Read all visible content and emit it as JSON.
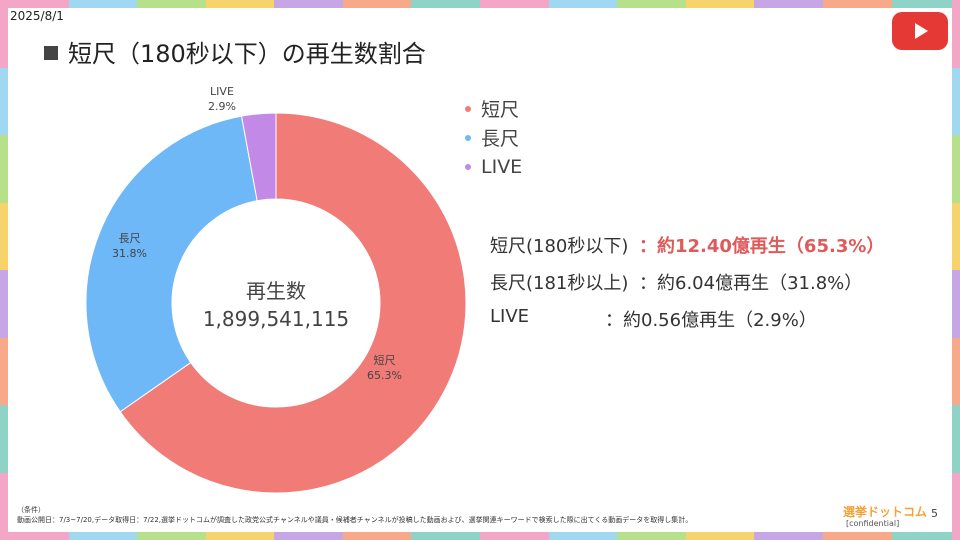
{
  "date": "2025/8/1",
  "title": "短尺（180秒以下）の再生数割合",
  "chart_data": {
    "type": "pie",
    "variant": "donut",
    "center_title": "再生数",
    "center_value": "1,899,541,115",
    "slices": [
      {
        "name": "短尺",
        "value": 65.3,
        "label": "65.3%",
        "color": "#f07b77"
      },
      {
        "name": "長尺",
        "value": 31.8,
        "label": "31.8%",
        "color": "#6fb8f7"
      },
      {
        "name": "LIVE",
        "value": 2.9,
        "label": "2.9%",
        "color": "#c28ae6"
      }
    ],
    "legend": [
      {
        "name": "短尺",
        "color": "#f07b77"
      },
      {
        "name": "長尺",
        "color": "#6fb8f7"
      },
      {
        "name": "LIVE",
        "color": "#c28ae6"
      }
    ],
    "legend_position": "right"
  },
  "stats": [
    {
      "label": "短尺(180秒以下)",
      "value": "：約12.40億再生（65.3%）",
      "highlight": true
    },
    {
      "label": "長尺(181秒以上)",
      "value": "：約6.04億再生（31.8%）",
      "highlight": false
    },
    {
      "label": "LIVE",
      "value": "：約0.56億再生（2.9%）",
      "highlight": false
    }
  ],
  "footnote": {
    "line1": "（条件）",
    "line2": "動画公開日：7/3~7/20,データ取得日：7/22,選挙ドットコムが調査した政党公式チャンネルや議員・候補者チャンネルが投稿した動画および、選挙関連キーワードで検索した際に出てくる動画データを取得し集計。"
  },
  "brand": "選挙ドットコム",
  "confidential": "[confidential]",
  "page_number": "5",
  "colors": {
    "frame": [
      "#f4a6c6",
      "#9fd8f0",
      "#b7e08a",
      "#f7d36b",
      "#c7a6e6",
      "#f7a98a",
      "#8fd3c7"
    ]
  },
  "icons": {
    "youtube": "youtube-logo-icon"
  }
}
